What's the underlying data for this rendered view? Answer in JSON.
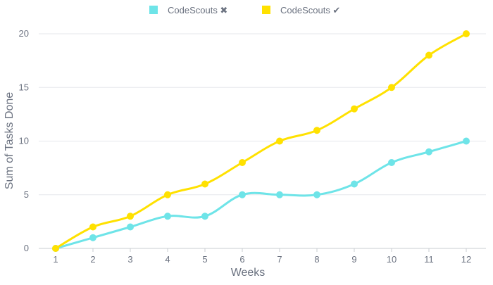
{
  "chart_data": {
    "type": "line",
    "title": "",
    "xlabel": "Weeks",
    "ylabel": "Sum of Tasks Done",
    "categories": [
      "1",
      "2",
      "3",
      "4",
      "5",
      "6",
      "7",
      "8",
      "9",
      "10",
      "11",
      "12"
    ],
    "x": [
      1,
      2,
      3,
      4,
      5,
      6,
      7,
      8,
      9,
      10,
      11,
      12
    ],
    "yticks": [
      0,
      5,
      10,
      15,
      20
    ],
    "ylim": [
      0,
      20
    ],
    "grid": true,
    "legend_position": "top-center",
    "series": [
      {
        "name": "CodeScouts ✖",
        "color": "#6ee4e8",
        "values": [
          0,
          1,
          2,
          3,
          3,
          5,
          5,
          5,
          6,
          8,
          9,
          10
        ]
      },
      {
        "name": "CodeScouts ✔",
        "color": "#ffe100",
        "values": [
          0,
          2,
          3,
          5,
          6,
          8,
          10,
          11,
          13,
          15,
          18,
          20
        ]
      }
    ]
  }
}
